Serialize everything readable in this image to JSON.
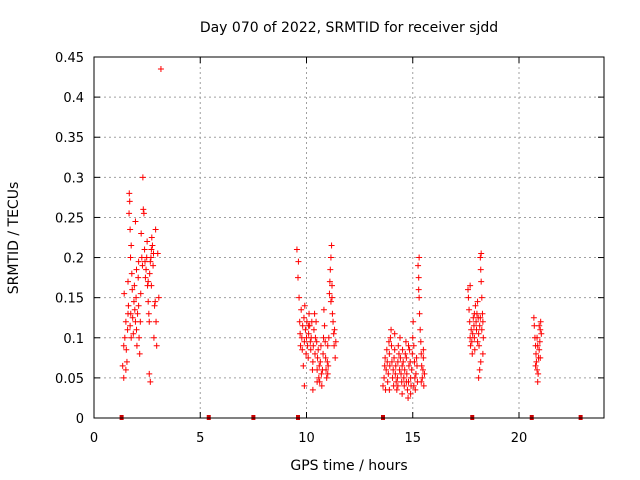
{
  "chart_data": {
    "type": "scatter",
    "title": "Day 070 of 2022, SRMTID for receiver sjdd",
    "xlabel": "GPS time / hours",
    "ylabel": "SRMTID / TECUs",
    "xlim": [
      0,
      24
    ],
    "ylim": [
      0,
      0.45
    ],
    "xticks": [
      0,
      5,
      10,
      15,
      20
    ],
    "xtick_labels": [
      "0",
      "5",
      "10",
      "15",
      "20"
    ],
    "yticks": [
      0,
      0.05,
      0.1,
      0.15,
      0.2,
      0.25,
      0.3,
      0.35,
      0.4,
      0.45
    ],
    "ytick_labels": [
      "0",
      "0.05",
      "0.1",
      "0.15",
      "0.2",
      "0.25",
      "0.3",
      "0.35",
      "0.4",
      "0.45"
    ],
    "grid": true,
    "marker": "+",
    "color": "#ff0000",
    "baseline_marks_x": [
      1.3,
      5.4,
      7.5,
      9.6,
      13.6,
      17.8,
      20.6,
      22.9
    ],
    "series": [
      {
        "name": "SRMTID",
        "points": [
          [
            1.35,
            0.065
          ],
          [
            1.4,
            0.09
          ],
          [
            1.42,
            0.155
          ],
          [
            1.45,
            0.1
          ],
          [
            1.5,
            0.12
          ],
          [
            1.52,
            0.085
          ],
          [
            1.55,
            0.07
          ],
          [
            1.58,
            0.11
          ],
          [
            1.6,
            0.17
          ],
          [
            1.62,
            0.14
          ],
          [
            1.65,
            0.255
          ],
          [
            1.66,
            0.28
          ],
          [
            1.68,
            0.27
          ],
          [
            1.7,
            0.235
          ],
          [
            1.72,
            0.2
          ],
          [
            1.73,
            0.13
          ],
          [
            1.75,
            0.1
          ],
          [
            1.78,
            0.18
          ],
          [
            1.8,
            0.16
          ],
          [
            1.82,
            0.125
          ],
          [
            1.85,
            0.105
          ],
          [
            1.88,
            0.145
          ],
          [
            1.9,
            0.165
          ],
          [
            1.92,
            0.135
          ],
          [
            1.95,
            0.12
          ],
          [
            1.98,
            0.15
          ],
          [
            2.0,
            0.11
          ],
          [
            2.02,
            0.09
          ],
          [
            2.05,
            0.13
          ],
          [
            2.08,
            0.175
          ],
          [
            2.1,
            0.14
          ],
          [
            2.12,
            0.1
          ],
          [
            2.15,
            0.08
          ],
          [
            2.18,
            0.12
          ],
          [
            2.2,
            0.155
          ],
          [
            2.22,
            0.23
          ],
          [
            2.25,
            0.2
          ],
          [
            2.28,
            0.19
          ],
          [
            2.3,
            0.3
          ],
          [
            2.32,
            0.26
          ],
          [
            2.35,
            0.255
          ],
          [
            2.38,
            0.21
          ],
          [
            2.4,
            0.195
          ],
          [
            2.42,
            0.175
          ],
          [
            2.45,
            0.185
          ],
          [
            2.48,
            0.2
          ],
          [
            2.5,
            0.22
          ],
          [
            2.52,
            0.165
          ],
          [
            2.55,
            0.145
          ],
          [
            2.58,
            0.13
          ],
          [
            2.6,
            0.12
          ],
          [
            2.62,
            0.18
          ],
          [
            2.65,
            0.195
          ],
          [
            2.68,
            0.2
          ],
          [
            2.7,
            0.21
          ],
          [
            2.72,
            0.225
          ],
          [
            2.75,
            0.215
          ],
          [
            2.78,
            0.19
          ],
          [
            2.8,
            0.205
          ],
          [
            2.82,
            0.1
          ],
          [
            2.85,
            0.14
          ],
          [
            2.88,
            0.145
          ],
          [
            2.9,
            0.235
          ],
          [
            2.92,
            0.12
          ],
          [
            2.95,
            0.09
          ],
          [
            3.0,
            0.205
          ],
          [
            3.05,
            0.15
          ],
          [
            3.15,
            0.435
          ],
          [
            2.6,
            0.055
          ],
          [
            2.65,
            0.045
          ],
          [
            1.4,
            0.05
          ],
          [
            1.5,
            0.06
          ],
          [
            2.0,
            0.185
          ],
          [
            2.1,
            0.195
          ],
          [
            1.95,
            0.245
          ],
          [
            1.75,
            0.215
          ],
          [
            2.55,
            0.17
          ],
          [
            2.7,
            0.165
          ],
          [
            1.6,
            0.13
          ],
          [
            1.7,
            0.115
          ],
          [
            9.55,
            0.21
          ],
          [
            9.6,
            0.175
          ],
          [
            9.62,
            0.195
          ],
          [
            9.65,
            0.15
          ],
          [
            9.68,
            0.12
          ],
          [
            9.7,
            0.105
          ],
          [
            9.72,
            0.09
          ],
          [
            9.75,
            0.135
          ],
          [
            9.78,
            0.1
          ],
          [
            9.8,
            0.085
          ],
          [
            9.82,
            0.115
          ],
          [
            9.85,
            0.065
          ],
          [
            9.88,
            0.125
          ],
          [
            9.9,
            0.095
          ],
          [
            9.92,
            0.14
          ],
          [
            9.95,
            0.11
          ],
          [
            9.98,
            0.08
          ],
          [
            10.0,
            0.1
          ],
          [
            10.02,
            0.12
          ],
          [
            10.05,
            0.09
          ],
          [
            10.08,
            0.075
          ],
          [
            10.1,
            0.105
          ],
          [
            10.12,
            0.13
          ],
          [
            10.15,
            0.115
          ],
          [
            10.18,
            0.095
          ],
          [
            10.2,
            0.085
          ],
          [
            10.22,
            0.1
          ],
          [
            10.25,
            0.12
          ],
          [
            10.28,
            0.06
          ],
          [
            10.3,
            0.07
          ],
          [
            10.32,
            0.09
          ],
          [
            10.35,
            0.11
          ],
          [
            10.38,
            0.13
          ],
          [
            10.4,
            0.08
          ],
          [
            10.42,
            0.1
          ],
          [
            10.45,
            0.12
          ],
          [
            10.48,
            0.095
          ],
          [
            10.5,
            0.06
          ],
          [
            10.52,
            0.075
          ],
          [
            10.55,
            0.085
          ],
          [
            10.58,
            0.05
          ],
          [
            10.6,
            0.065
          ],
          [
            10.62,
            0.045
          ],
          [
            10.65,
            0.07
          ],
          [
            10.68,
            0.09
          ],
          [
            10.7,
            0.055
          ],
          [
            10.72,
            0.04
          ],
          [
            10.75,
            0.06
          ],
          [
            10.78,
            0.08
          ],
          [
            10.8,
            0.1
          ],
          [
            10.82,
            0.135
          ],
          [
            10.85,
            0.115
          ],
          [
            10.88,
            0.095
          ],
          [
            10.9,
            0.075
          ],
          [
            10.92,
            0.06
          ],
          [
            10.95,
            0.05
          ],
          [
            10.98,
            0.07
          ],
          [
            11.0,
            0.09
          ],
          [
            11.02,
            0.065
          ],
          [
            11.05,
            0.1
          ],
          [
            11.08,
            0.155
          ],
          [
            11.1,
            0.17
          ],
          [
            11.12,
            0.185
          ],
          [
            11.15,
            0.2
          ],
          [
            11.18,
            0.215
          ],
          [
            11.2,
            0.165
          ],
          [
            11.22,
            0.13
          ],
          [
            11.25,
            0.12
          ],
          [
            11.28,
            0.105
          ],
          [
            11.3,
            0.09
          ],
          [
            11.32,
            0.11
          ],
          [
            11.35,
            0.075
          ],
          [
            11.38,
            0.095
          ],
          [
            11.15,
            0.145
          ],
          [
            11.2,
            0.15
          ],
          [
            10.3,
            0.035
          ],
          [
            9.9,
            0.04
          ],
          [
            10.5,
            0.045
          ],
          [
            11.0,
            0.055
          ],
          [
            10.1,
            0.115
          ],
          [
            13.6,
            0.04
          ],
          [
            13.65,
            0.05
          ],
          [
            13.68,
            0.065
          ],
          [
            13.7,
            0.075
          ],
          [
            13.72,
            0.035
          ],
          [
            13.75,
            0.06
          ],
          [
            13.78,
            0.085
          ],
          [
            13.8,
            0.07
          ],
          [
            13.82,
            0.045
          ],
          [
            13.85,
            0.055
          ],
          [
            13.88,
            0.095
          ],
          [
            13.9,
            0.08
          ],
          [
            13.92,
            0.065
          ],
          [
            13.95,
            0.1
          ],
          [
            13.98,
            0.11
          ],
          [
            14.0,
            0.09
          ],
          [
            14.02,
            0.07
          ],
          [
            14.05,
            0.05
          ],
          [
            14.08,
            0.06
          ],
          [
            14.1,
            0.04
          ],
          [
            14.12,
            0.075
          ],
          [
            14.15,
            0.085
          ],
          [
            14.18,
            0.055
          ],
          [
            14.2,
            0.065
          ],
          [
            14.22,
            0.045
          ],
          [
            14.25,
            0.035
          ],
          [
            14.28,
            0.05
          ],
          [
            14.3,
            0.07
          ],
          [
            14.32,
            0.09
          ],
          [
            14.35,
            0.08
          ],
          [
            14.38,
            0.06
          ],
          [
            14.4,
            0.1
          ],
          [
            14.42,
            0.075
          ],
          [
            14.45,
            0.055
          ],
          [
            14.48,
            0.045
          ],
          [
            14.5,
            0.065
          ],
          [
            14.52,
            0.085
          ],
          [
            14.55,
            0.07
          ],
          [
            14.58,
            0.05
          ],
          [
            14.6,
            0.04
          ],
          [
            14.62,
            0.06
          ],
          [
            14.65,
            0.08
          ],
          [
            14.68,
            0.095
          ],
          [
            14.7,
            0.075
          ],
          [
            14.72,
            0.055
          ],
          [
            14.75,
            0.035
          ],
          [
            14.78,
            0.025
          ],
          [
            14.8,
            0.045
          ],
          [
            14.82,
            0.065
          ],
          [
            14.85,
            0.085
          ],
          [
            14.88,
            0.07
          ],
          [
            14.9,
            0.05
          ],
          [
            14.92,
            0.04
          ],
          [
            14.95,
            0.06
          ],
          [
            14.98,
            0.08
          ],
          [
            15.0,
            0.1
          ],
          [
            15.02,
            0.12
          ],
          [
            15.05,
            0.09
          ],
          [
            15.08,
            0.07
          ],
          [
            15.1,
            0.05
          ],
          [
            15.12,
            0.035
          ],
          [
            15.15,
            0.055
          ],
          [
            15.18,
            0.075
          ],
          [
            15.2,
            0.065
          ],
          [
            15.22,
            0.045
          ],
          [
            15.25,
            0.19
          ],
          [
            15.28,
            0.175
          ],
          [
            15.3,
            0.15
          ],
          [
            15.32,
            0.13
          ],
          [
            15.35,
            0.11
          ],
          [
            15.38,
            0.095
          ],
          [
            15.4,
            0.08
          ],
          [
            15.42,
            0.065
          ],
          [
            15.45,
            0.05
          ],
          [
            15.48,
            0.06
          ],
          [
            15.5,
            0.075
          ],
          [
            15.52,
            0.04
          ],
          [
            15.55,
            0.055
          ],
          [
            15.3,
            0.2
          ],
          [
            15.28,
            0.16
          ],
          [
            14.5,
            0.03
          ],
          [
            14.9,
            0.03
          ],
          [
            14.3,
            0.04
          ],
          [
            15.05,
            0.04
          ],
          [
            14.7,
            0.045
          ],
          [
            13.9,
            0.035
          ],
          [
            15.4,
            0.045
          ],
          [
            14.15,
            0.105
          ],
          [
            14.8,
            0.09
          ],
          [
            15.5,
            0.085
          ],
          [
            17.6,
            0.16
          ],
          [
            17.62,
            0.15
          ],
          [
            17.65,
            0.135
          ],
          [
            17.68,
            0.12
          ],
          [
            17.7,
            0.1
          ],
          [
            17.72,
            0.09
          ],
          [
            17.75,
            0.11
          ],
          [
            17.78,
            0.095
          ],
          [
            17.8,
            0.08
          ],
          [
            17.82,
            0.105
          ],
          [
            17.85,
            0.125
          ],
          [
            17.88,
            0.115
          ],
          [
            17.9,
            0.1
          ],
          [
            17.92,
            0.085
          ],
          [
            17.95,
            0.14
          ],
          [
            17.98,
            0.12
          ],
          [
            18.0,
            0.11
          ],
          [
            18.02,
            0.13
          ],
          [
            18.05,
            0.145
          ],
          [
            18.08,
            0.125
          ],
          [
            18.1,
            0.105
          ],
          [
            18.12,
            0.09
          ],
          [
            18.15,
            0.115
          ],
          [
            18.18,
            0.2
          ],
          [
            18.2,
            0.185
          ],
          [
            18.22,
            0.17
          ],
          [
            18.25,
            0.15
          ],
          [
            18.28,
            0.13
          ],
          [
            18.3,
            0.12
          ],
          [
            18.32,
            0.1
          ],
          [
            18.1,
            0.05
          ],
          [
            18.15,
            0.06
          ],
          [
            18.2,
            0.07
          ],
          [
            18.22,
            0.205
          ],
          [
            18.3,
            0.08
          ],
          [
            17.7,
            0.165
          ],
          [
            17.9,
            0.13
          ],
          [
            18.05,
            0.095
          ],
          [
            18.25,
            0.11
          ],
          [
            18.18,
            0.125
          ],
          [
            20.7,
            0.125
          ],
          [
            20.72,
            0.115
          ],
          [
            20.75,
            0.1
          ],
          [
            20.78,
            0.09
          ],
          [
            20.8,
            0.08
          ],
          [
            20.82,
            0.07
          ],
          [
            20.85,
            0.06
          ],
          [
            20.88,
            0.045
          ],
          [
            20.9,
            0.055
          ],
          [
            20.92,
            0.075
          ],
          [
            20.95,
            0.085
          ],
          [
            20.98,
            0.095
          ],
          [
            21.0,
            0.11
          ],
          [
            21.02,
            0.12
          ],
          [
            21.05,
            0.105
          ],
          [
            20.78,
            0.065
          ],
          [
            20.85,
            0.1
          ],
          [
            20.95,
            0.115
          ],
          [
            21.0,
            0.075
          ],
          [
            20.88,
            0.09
          ]
        ]
      }
    ]
  }
}
